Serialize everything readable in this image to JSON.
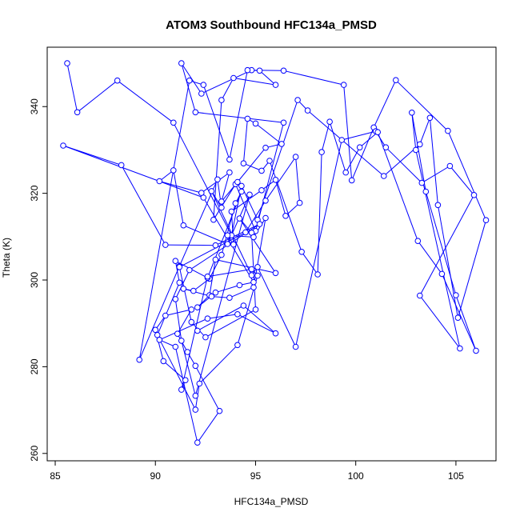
{
  "chart_data": {
    "type": "line",
    "title": "ATOM3 Southbound HFC134a_PMSD",
    "xlabel": "HFC134a_PMSD",
    "ylabel": "Theta (K)",
    "xlim": [
      84.6,
      107.0
    ],
    "ylim": [
      258.3,
      353.7
    ],
    "xticks": [
      85,
      90,
      95,
      100,
      105
    ],
    "yticks": [
      260,
      280,
      300,
      320,
      340
    ],
    "grid": false,
    "legend": "none",
    "line_color": "#0000ff",
    "marker": "open-circle",
    "series": [
      {
        "x": [
          85.6,
          86.1,
          88.1,
          90.9,
          93.8,
          94.3,
          95.1,
          97.1,
          97.6,
          101.4,
          103.2,
          103.7,
          104.1,
          105.1,
          106.5,
          104.6,
          102.0,
          100.9,
          99.8,
          99.4,
          96.4,
          94.8,
          92.3,
          91.3,
          92.0,
          96.4,
          95.0,
          94.0,
          92.9,
          93.3,
          93.9,
          96.0,
          95.2,
          94.6,
          93.7,
          92.4,
          91.7,
          89.2,
          91.2,
          93.1,
          93.3,
          92.8,
          94.8,
          95.1,
          97.0,
          99.3,
          101.0,
          101.5,
          103.3,
          104.7,
          105.9,
          103.2,
          105.2,
          103.0,
          102.8,
          103.5,
          105.0,
          106.0,
          104.3,
          103.1,
          101.1,
          100.2,
          99.5,
          98.7,
          98.3,
          98.1,
          97.3,
          95.7,
          95.3,
          94.4,
          94.6,
          95.0,
          96.3,
          95.5,
          94.1,
          93.3,
          93.7,
          92.3,
          90.2,
          90.9,
          91.4,
          93.6,
          94.7,
          92.0,
          91.3,
          91.0,
          91.7,
          95.2,
          93.0,
          90.5,
          88.3,
          85.4,
          92.4,
          94.9,
          94.2,
          93.0,
          92.1,
          92.7,
          93.0,
          96.0,
          94.2,
          94.8,
          95.0,
          92.5,
          91.8,
          91.2,
          94.5,
          95.5,
          97.0,
          97.2,
          96.5,
          96.0,
          95.3,
          93.8,
          93.9,
          93.6,
          94.9,
          95.5,
          94.9,
          93.7,
          92.8,
          91.4,
          91.9,
          92.7,
          93.3,
          94.0,
          94.3,
          92.6,
          91.0,
          91.2,
          90.1,
          92.0,
          92.2,
          94.1,
          95.1,
          94.8,
          92.6,
          91.3,
          91.5,
          90.4,
          90.0,
          90.5,
          91.8,
          91.1,
          91.6,
          92.0,
          93.2,
          92.1,
          91.0,
          90.2,
          92.6,
          94.1,
          96.0,
          94.4,
          92.1
        ],
        "y": [
          350.0,
          338.7,
          346.0,
          336.3,
          310.3,
          321.7,
          313.9,
          341.5,
          339.1,
          324.0,
          331.3,
          337.4,
          317.3,
          291.3,
          313.8,
          334.4,
          346.1,
          335.2,
          323.0,
          345.0,
          348.3,
          348.4,
          343.0,
          350.0,
          338.7,
          336.3,
          311.3,
          322.1,
          313.9,
          341.5,
          346.6,
          345.0,
          348.3,
          348.4,
          327.8,
          345.0,
          346.0,
          281.6,
          303.2,
          323.2,
          316.7,
          320.5,
          301.1,
          303.0,
          284.6,
          332.3,
          334.3,
          330.6,
          322.4,
          326.3,
          319.6,
          296.4,
          284.2,
          330.0,
          338.6,
          320.4,
          296.5,
          283.7,
          301.4,
          309.0,
          334.1,
          330.6,
          324.8,
          336.5,
          329.5,
          301.3,
          306.5,
          327.5,
          325.2,
          326.9,
          337.2,
          336.1,
          331.4,
          330.5,
          322.6,
          318.1,
          324.8,
          320.1,
          322.8,
          325.3,
          312.6,
          308.3,
          319.7,
          273.3,
          286.0,
          295.6,
          302.3,
          312.9,
          308.0,
          308.1,
          326.5,
          331.0,
          319.0,
          299.5,
          298.8,
          297.1,
          293.7,
          296.5,
          304.7,
          301.6,
          314.2,
          310.9,
          293.2,
          286.8,
          290.3,
          303.0,
          311.0,
          318.3,
          328.4,
          317.8,
          314.8,
          323.1,
          320.7,
          315.8,
          308.2,
          310.3,
          309.9,
          314.3,
          298.3,
          295.9,
          296.2,
          298.0,
          297.5,
          300.3,
          305.8,
          317.7,
          320.4,
          300.5,
          304.4,
          299.4,
          287.3,
          270.1,
          276.1,
          285.0,
          301.0,
          302.5,
          300.8,
          274.7,
          276.9,
          281.3,
          288.5,
          291.8,
          293.2,
          287.6,
          283.4,
          280.2,
          269.8,
          262.5,
          284.6,
          286.2,
          291.1,
          292.1,
          287.7,
          294.1,
          288.3
        ]
      }
    ]
  }
}
